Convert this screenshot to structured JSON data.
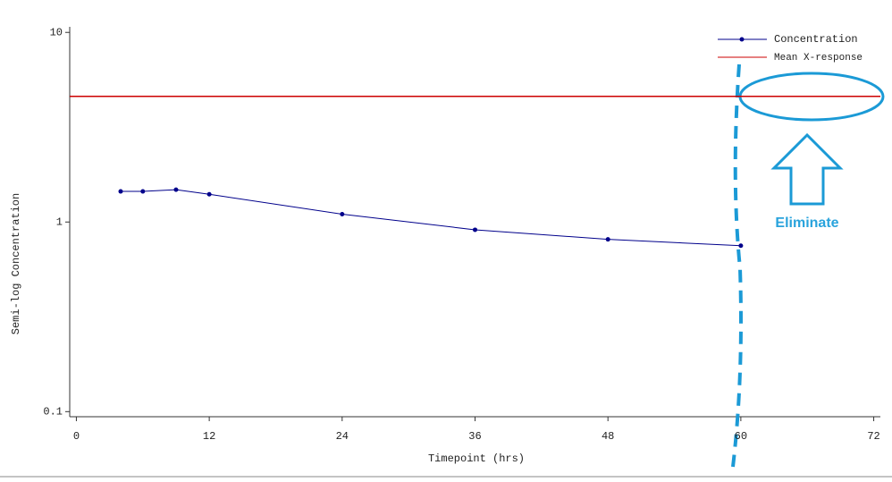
{
  "chart_data": {
    "type": "line",
    "y_label": "Semi-log Concentration",
    "x_label": "Timepoint (hrs)",
    "x": [
      4,
      6,
      9,
      12,
      24,
      36,
      48,
      60
    ],
    "series": [
      {
        "name": "Concentration",
        "color": "#00008b",
        "values": [
          1.45,
          1.45,
          1.48,
          1.4,
          1.1,
          0.91,
          0.81,
          0.75
        ]
      }
    ],
    "reference_lines": [
      {
        "name": "Mean X-response",
        "color": "#cc0000",
        "value": 4.6
      }
    ],
    "xlim": [
      -0.6,
      72.6
    ],
    "xticks": [
      0,
      12,
      24,
      36,
      48,
      60,
      72
    ],
    "ylim": [
      0.094,
      10.7
    ],
    "yticks": [
      0.1,
      1,
      10
    ],
    "log_scale_y": true,
    "grid": false,
    "legend_position": "top-right",
    "annotations": [
      "Eliminate"
    ]
  }
}
